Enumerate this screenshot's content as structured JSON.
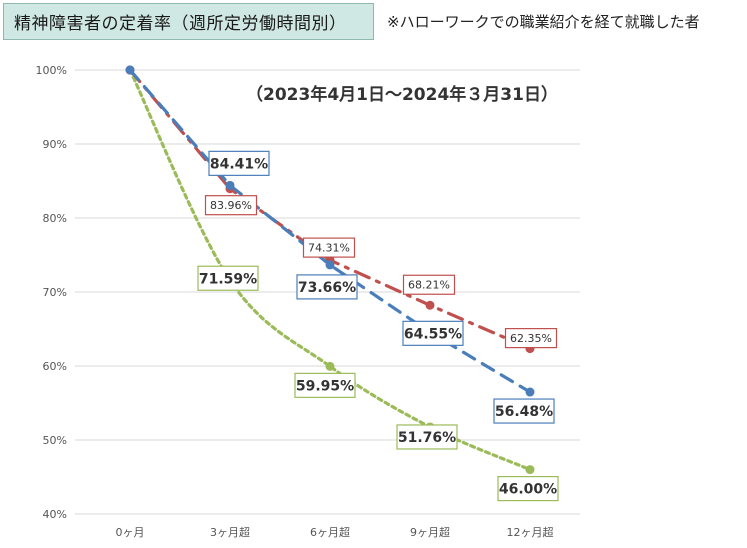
{
  "header": {
    "title": "精神障害者の定着率（週所定労働時間別）",
    "note": "※ハローワークでの職業紹介を経て就職した者"
  },
  "chart_data": {
    "type": "line",
    "period_label": "（2023年4月1日～2024年３月31日）",
    "categories": [
      "0ヶ月",
      "3ヶ月超",
      "6ヶ月超",
      "9ヶ月超",
      "12ヶ月超"
    ],
    "y_ticks": [
      "100%",
      "90%",
      "80%",
      "70%",
      "60%",
      "50%",
      "40%"
    ],
    "ylim": [
      40,
      100
    ],
    "grid": true,
    "series": [
      {
        "key": "blue",
        "color": "#4a7ebb",
        "dash": "long-dash",
        "values": [
          100,
          84.41,
          73.66,
          64.55,
          56.48
        ],
        "labels": [
          "",
          "84.41%",
          "73.66%",
          "64.55%",
          "56.48%"
        ]
      },
      {
        "key": "red",
        "color": "#c0504d",
        "dash": "dash-dot",
        "values": [
          100,
          83.96,
          74.31,
          68.21,
          62.35
        ],
        "labels": [
          "",
          "83.96%",
          "74.31%",
          "68.21%",
          "62.35%"
        ]
      },
      {
        "key": "green",
        "color": "#9bbb59",
        "dash": "dot",
        "values": [
          100,
          71.59,
          59.95,
          51.76,
          46.0
        ],
        "labels": [
          "",
          "71.59%",
          "59.95%",
          "51.76%",
          "46.00%"
        ]
      }
    ]
  }
}
